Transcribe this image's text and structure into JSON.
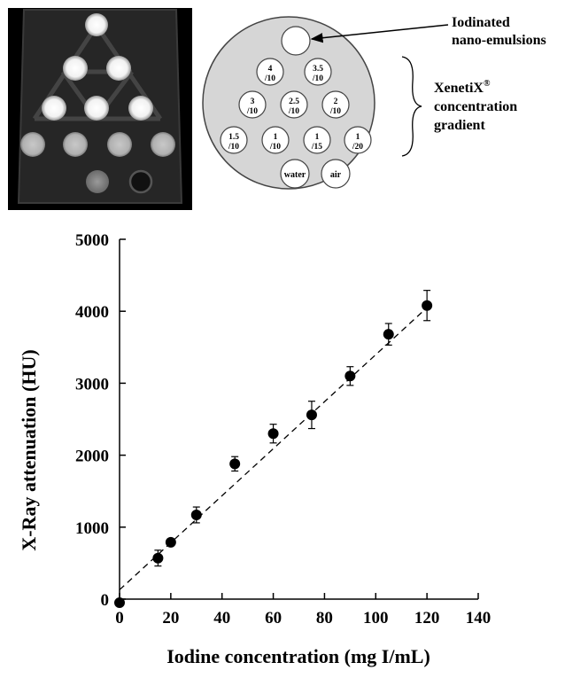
{
  "phantom": {
    "emulsion_label": [
      "Iodinated",
      "nano-emulsions"
    ],
    "gradient_label": {
      "brand": "XenetiX",
      "reg": "®",
      "lines": [
        "concentration",
        "gradient"
      ]
    },
    "wells": [
      {
        "l1": "4",
        "l2": "/10"
      },
      {
        "l1": "3.5",
        "l2": "/10"
      },
      {
        "l1": "3",
        "l2": "/10"
      },
      {
        "l1": "2.5",
        "l2": "/10"
      },
      {
        "l1": "2",
        "l2": "/10"
      },
      {
        "l1": "1.5",
        "l2": "/10"
      },
      {
        "l1": "1",
        "l2": "/10"
      },
      {
        "l1": "1",
        "l2": "/15"
      },
      {
        "l1": "1",
        "l2": "/20"
      },
      {
        "l1": "water",
        "l2": ""
      },
      {
        "l1": "air",
        "l2": ""
      }
    ]
  },
  "chart_data": {
    "type": "scatter",
    "title": "",
    "xlabel": "Iodine concentration  (mg I/mL)",
    "ylabel": "X-Ray attenuation  (HU)",
    "xlim": [
      0,
      140
    ],
    "ylim": [
      0,
      5000
    ],
    "xticks": [
      0,
      20,
      40,
      60,
      80,
      100,
      120,
      140
    ],
    "yticks": [
      0,
      1000,
      2000,
      3000,
      4000,
      5000
    ],
    "grid": false,
    "series": [
      {
        "x": [
          0,
          15,
          20,
          30,
          45,
          60,
          75,
          90,
          105,
          120
        ],
        "y": [
          -50,
          570,
          790,
          1170,
          1880,
          2300,
          2560,
          3100,
          3680,
          4080
        ],
        "yerr": [
          20,
          110,
          40,
          110,
          100,
          130,
          190,
          130,
          150,
          210
        ]
      }
    ],
    "fit": {
      "style": "dashed",
      "x": [
        0,
        120
      ],
      "y": [
        130,
        4050
      ]
    }
  }
}
